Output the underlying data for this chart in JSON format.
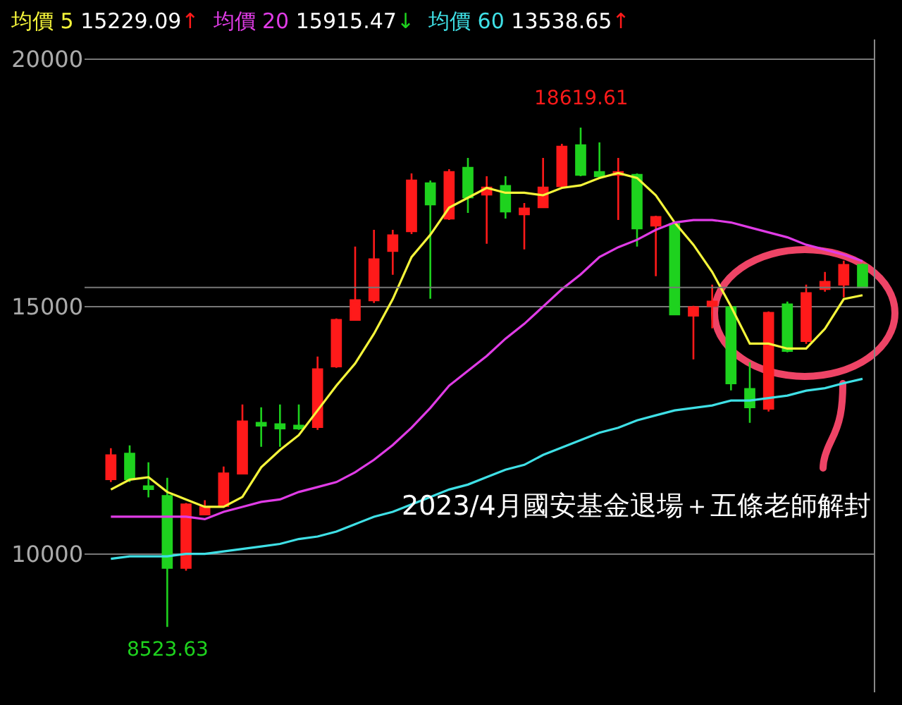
{
  "chart_data": {
    "type": "candlestick",
    "categories": [
      null,
      null,
      null,
      null,
      null,
      null,
      null,
      null,
      null,
      null,
      null,
      null,
      null,
      null,
      null,
      null,
      null,
      null,
      null,
      null,
      null,
      null,
      null,
      null,
      null,
      null,
      null,
      null,
      null,
      null,
      null,
      null,
      null,
      null,
      null,
      null,
      null,
      null,
      null,
      null,
      null
    ],
    "ohlc": [
      [
        11510,
        12137,
        11453,
        11994
      ],
      [
        12023,
        12194,
        11453,
        11510
      ],
      [
        11367,
        11852,
        11140,
        11310
      ],
      [
        11168,
        11538,
        8523.63,
        9715
      ],
      [
        9715,
        11026,
        9658,
        10997
      ],
      [
        10798,
        11083,
        10798,
        10940
      ],
      [
        10969,
        11766,
        10969,
        11624
      ],
      [
        11624,
        13020,
        11624,
        12678
      ],
      [
        12650,
        12963,
        12165,
        12593
      ],
      [
        12621,
        13020,
        12165,
        12536
      ],
      [
        12593,
        13020,
        12507,
        12536
      ],
      [
        12564,
        13989,
        12507,
        13732
      ],
      [
        13789,
        14758,
        13761,
        14729
      ],
      [
        14729,
        16211,
        14729,
        15128
      ],
      [
        15128,
        16553,
        15071,
        15954
      ],
      [
        16125,
        16553,
        15641,
        16439
      ],
      [
        16524,
        17692,
        16467,
        17550
      ],
      [
        17493,
        17550,
        15157,
        17066
      ],
      [
        16781,
        17778,
        16752,
        17721
      ],
      [
        17806,
        18006,
        16895,
        17208
      ],
      [
        17265,
        17635,
        16268,
        17407
      ],
      [
        17436,
        17635,
        16781,
        16923
      ],
      [
        16866,
        17094,
        16154,
        16980
      ],
      [
        17009,
        18006,
        17009,
        17407
      ],
      [
        17436,
        18291,
        17407,
        18234
      ],
      [
        18262,
        18619.61,
        17635,
        17664
      ],
      [
        17721,
        18319,
        17578,
        17635
      ],
      [
        17664,
        18006,
        16752,
        17721
      ],
      [
        17664,
        17692,
        16211,
        16581
      ],
      [
        16638,
        16838,
        15613,
        16809
      ],
      [
        16667,
        16724,
        14843,
        14843
      ],
      [
        14815,
        15014,
        13932,
        14986
      ],
      [
        15014,
        15442,
        14558,
        15100
      ],
      [
        14986,
        15014,
        13305,
        13447
      ],
      [
        13333,
        13875,
        12650,
        12963
      ],
      [
        12934,
        14900,
        12878,
        14872
      ],
      [
        15043,
        15100,
        14074,
        14103
      ],
      [
        14302,
        15442,
        14245,
        15271
      ],
      [
        15356,
        15698,
        15299,
        15499
      ],
      [
        15442,
        15926,
        15185,
        15841
      ],
      [
        15841,
        15869,
        15385,
        15385
      ]
    ],
    "colors": [
      "#ff1a1a",
      "#1ed21e",
      "#1ed21e",
      "#1ed21e",
      "#ff1a1a",
      "#ff1a1a",
      "#ff1a1a",
      "#ff1a1a",
      "#1ed21e",
      "#1ed21e",
      "#1ed21e",
      "#ff1a1a",
      "#ff1a1a",
      "#ff1a1a",
      "#ff1a1a",
      "#ff1a1a",
      "#ff1a1a",
      "#1ed21e",
      "#ff1a1a",
      "#1ed21e",
      "#ff1a1a",
      "#1ed21e",
      "#ff1a1a",
      "#ff1a1a",
      "#ff1a1a",
      "#1ed21e",
      "#1ed21e",
      "#ff1a1a",
      "#1ed21e",
      "#ff1a1a",
      "#1ed21e",
      "#ff1a1a",
      "#ff1a1a",
      "#1ed21e",
      "#1ed21e",
      "#ff1a1a",
      "#1ed21e",
      "#ff1a1a",
      "#ff1a1a",
      "#ff1a1a",
      "#1ed21e"
    ],
    "series": [
      {
        "name": "均價 5",
        "type": "line",
        "color": "#f5f53a",
        "values": [
          11300,
          11500,
          11550,
          11250,
          11100,
          10950,
          10950,
          11150,
          11750,
          12100,
          12400,
          12900,
          13400,
          13850,
          14450,
          15150,
          16000,
          16450,
          17000,
          17200,
          17400,
          17300,
          17300,
          17250,
          17400,
          17450,
          17600,
          17700,
          17600,
          17250,
          16700,
          16250,
          15700,
          15000,
          14250,
          14250,
          14150,
          14150,
          14550,
          15150,
          15229.09
        ]
      },
      {
        "name": "均價 20",
        "type": "line",
        "color": "#e03ce6",
        "values": [
          10750,
          10750,
          10750,
          10750,
          10750,
          10700,
          10850,
          10950,
          11050,
          11100,
          11250,
          11350,
          11450,
          11650,
          11900,
          12200,
          12550,
          12950,
          13400,
          13700,
          14000,
          14350,
          14650,
          15000,
          15350,
          15650,
          16000,
          16200,
          16350,
          16550,
          16700,
          16750,
          16750,
          16700,
          16600,
          16500,
          16400,
          16250,
          16150,
          16050,
          15915.47
        ]
      },
      {
        "name": "均價 60",
        "type": "line",
        "color": "#3fe0e6",
        "values": [
          9900,
          9950,
          9950,
          9950,
          10000,
          10000,
          10050,
          10100,
          10150,
          10200,
          10300,
          10350,
          10450,
          10600,
          10750,
          10850,
          11000,
          11150,
          11300,
          11400,
          11550,
          11700,
          11800,
          12000,
          12150,
          12300,
          12450,
          12550,
          12700,
          12800,
          12900,
          12950,
          13000,
          13100,
          13100,
          13150,
          13200,
          13300,
          13350,
          13450,
          13538.65
        ]
      }
    ],
    "ylim": [
      7200,
      20400
    ],
    "yticks": [
      10000,
      15000,
      20000
    ],
    "grid": "y",
    "tick_labels": "y",
    "legend": "top left",
    "ref_lines": [
      {
        "axis": "y",
        "value": 15385
      }
    ],
    "annotations": [
      "15229.09↑",
      "15915.47↓",
      "13538.65↑",
      {
        "text": "18619.61",
        "y": 18619.61
      },
      {
        "text": "8523.63",
        "y": 8523.63
      },
      "2023/4月國安基金退場＋五條老師解封"
    ]
  }
}
